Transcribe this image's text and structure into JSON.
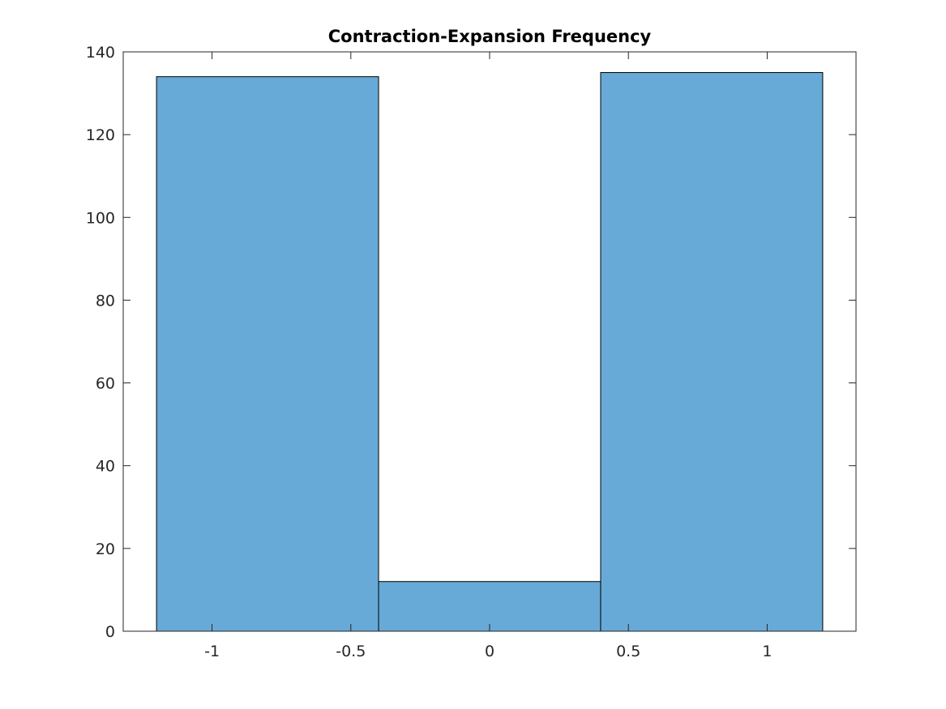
{
  "chart_data": {
    "type": "bar",
    "title": "Contraction-Expansion Frequency",
    "xlabel": "",
    "ylabel": "",
    "bins": [
      {
        "x_start": -1.2,
        "x_end": -0.4,
        "value": 134
      },
      {
        "x_start": -0.4,
        "x_end": 0.4,
        "value": 12
      },
      {
        "x_start": 0.4,
        "x_end": 1.2,
        "value": 135
      }
    ],
    "xlim": [
      -1.32,
      1.32
    ],
    "ylim": [
      0,
      140
    ],
    "xticks": [
      -1,
      -0.5,
      0,
      0.5,
      1
    ],
    "xtick_labels": [
      "-1",
      "-0.5",
      "0",
      "0.5",
      "1"
    ],
    "yticks": [
      0,
      20,
      40,
      60,
      80,
      100,
      120,
      140
    ],
    "ytick_labels": [
      "0",
      "20",
      "40",
      "60",
      "80",
      "100",
      "120",
      "140"
    ],
    "grid": false,
    "bar_color": "#67aad7",
    "edge_color": "#000000"
  }
}
